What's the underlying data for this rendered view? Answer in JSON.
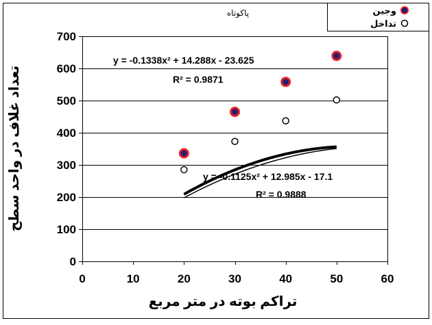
{
  "chart_data": {
    "type": "scatter",
    "title": "پاکوتاه",
    "xlabel": "تراکم بوته در متر مربع",
    "ylabel": "تعداد غلاف در واحد سطح",
    "xlim": [
      0,
      60
    ],
    "ylim": [
      0,
      700
    ],
    "x_ticks": [
      "0",
      "10",
      "20",
      "30",
      "40",
      "50",
      "60"
    ],
    "y_ticks": [
      "0",
      "100",
      "200",
      "300",
      "400",
      "500",
      "600",
      "700"
    ],
    "grid": "horizontal",
    "legend_position": "top-right",
    "series": [
      {
        "name": "وجین",
        "marker": "filled-circle",
        "marker_fill": "#1f1f6e",
        "marker_edge": "#e8202a",
        "line_color": "#000000",
        "trendline": "quadratic",
        "coefficients": [
          -0.1338,
          14.288,
          -23.625
        ],
        "points": [
          [
            20,
            336
          ],
          [
            30,
            465
          ],
          [
            40,
            558
          ],
          [
            50,
            639
          ]
        ],
        "equation": "y = -0.1338x² + 14.288x - 23.625",
        "r2": "R² = 0.9871"
      },
      {
        "name": "تداخل",
        "marker": "open-circle",
        "marker_fill": "#ffffff",
        "marker_edge": "#000000",
        "line_color": "#000000",
        "trendline": "quadratic",
        "coefficients": [
          -0.1125,
          12.985,
          -17.1
        ],
        "points": [
          [
            20,
            285
          ],
          [
            30,
            373
          ],
          [
            40,
            437
          ],
          [
            50,
            502
          ]
        ],
        "equation": "y = -0.1125x² + 12.985x - 17.1",
        "r2": "R² = 0.9888"
      }
    ]
  }
}
